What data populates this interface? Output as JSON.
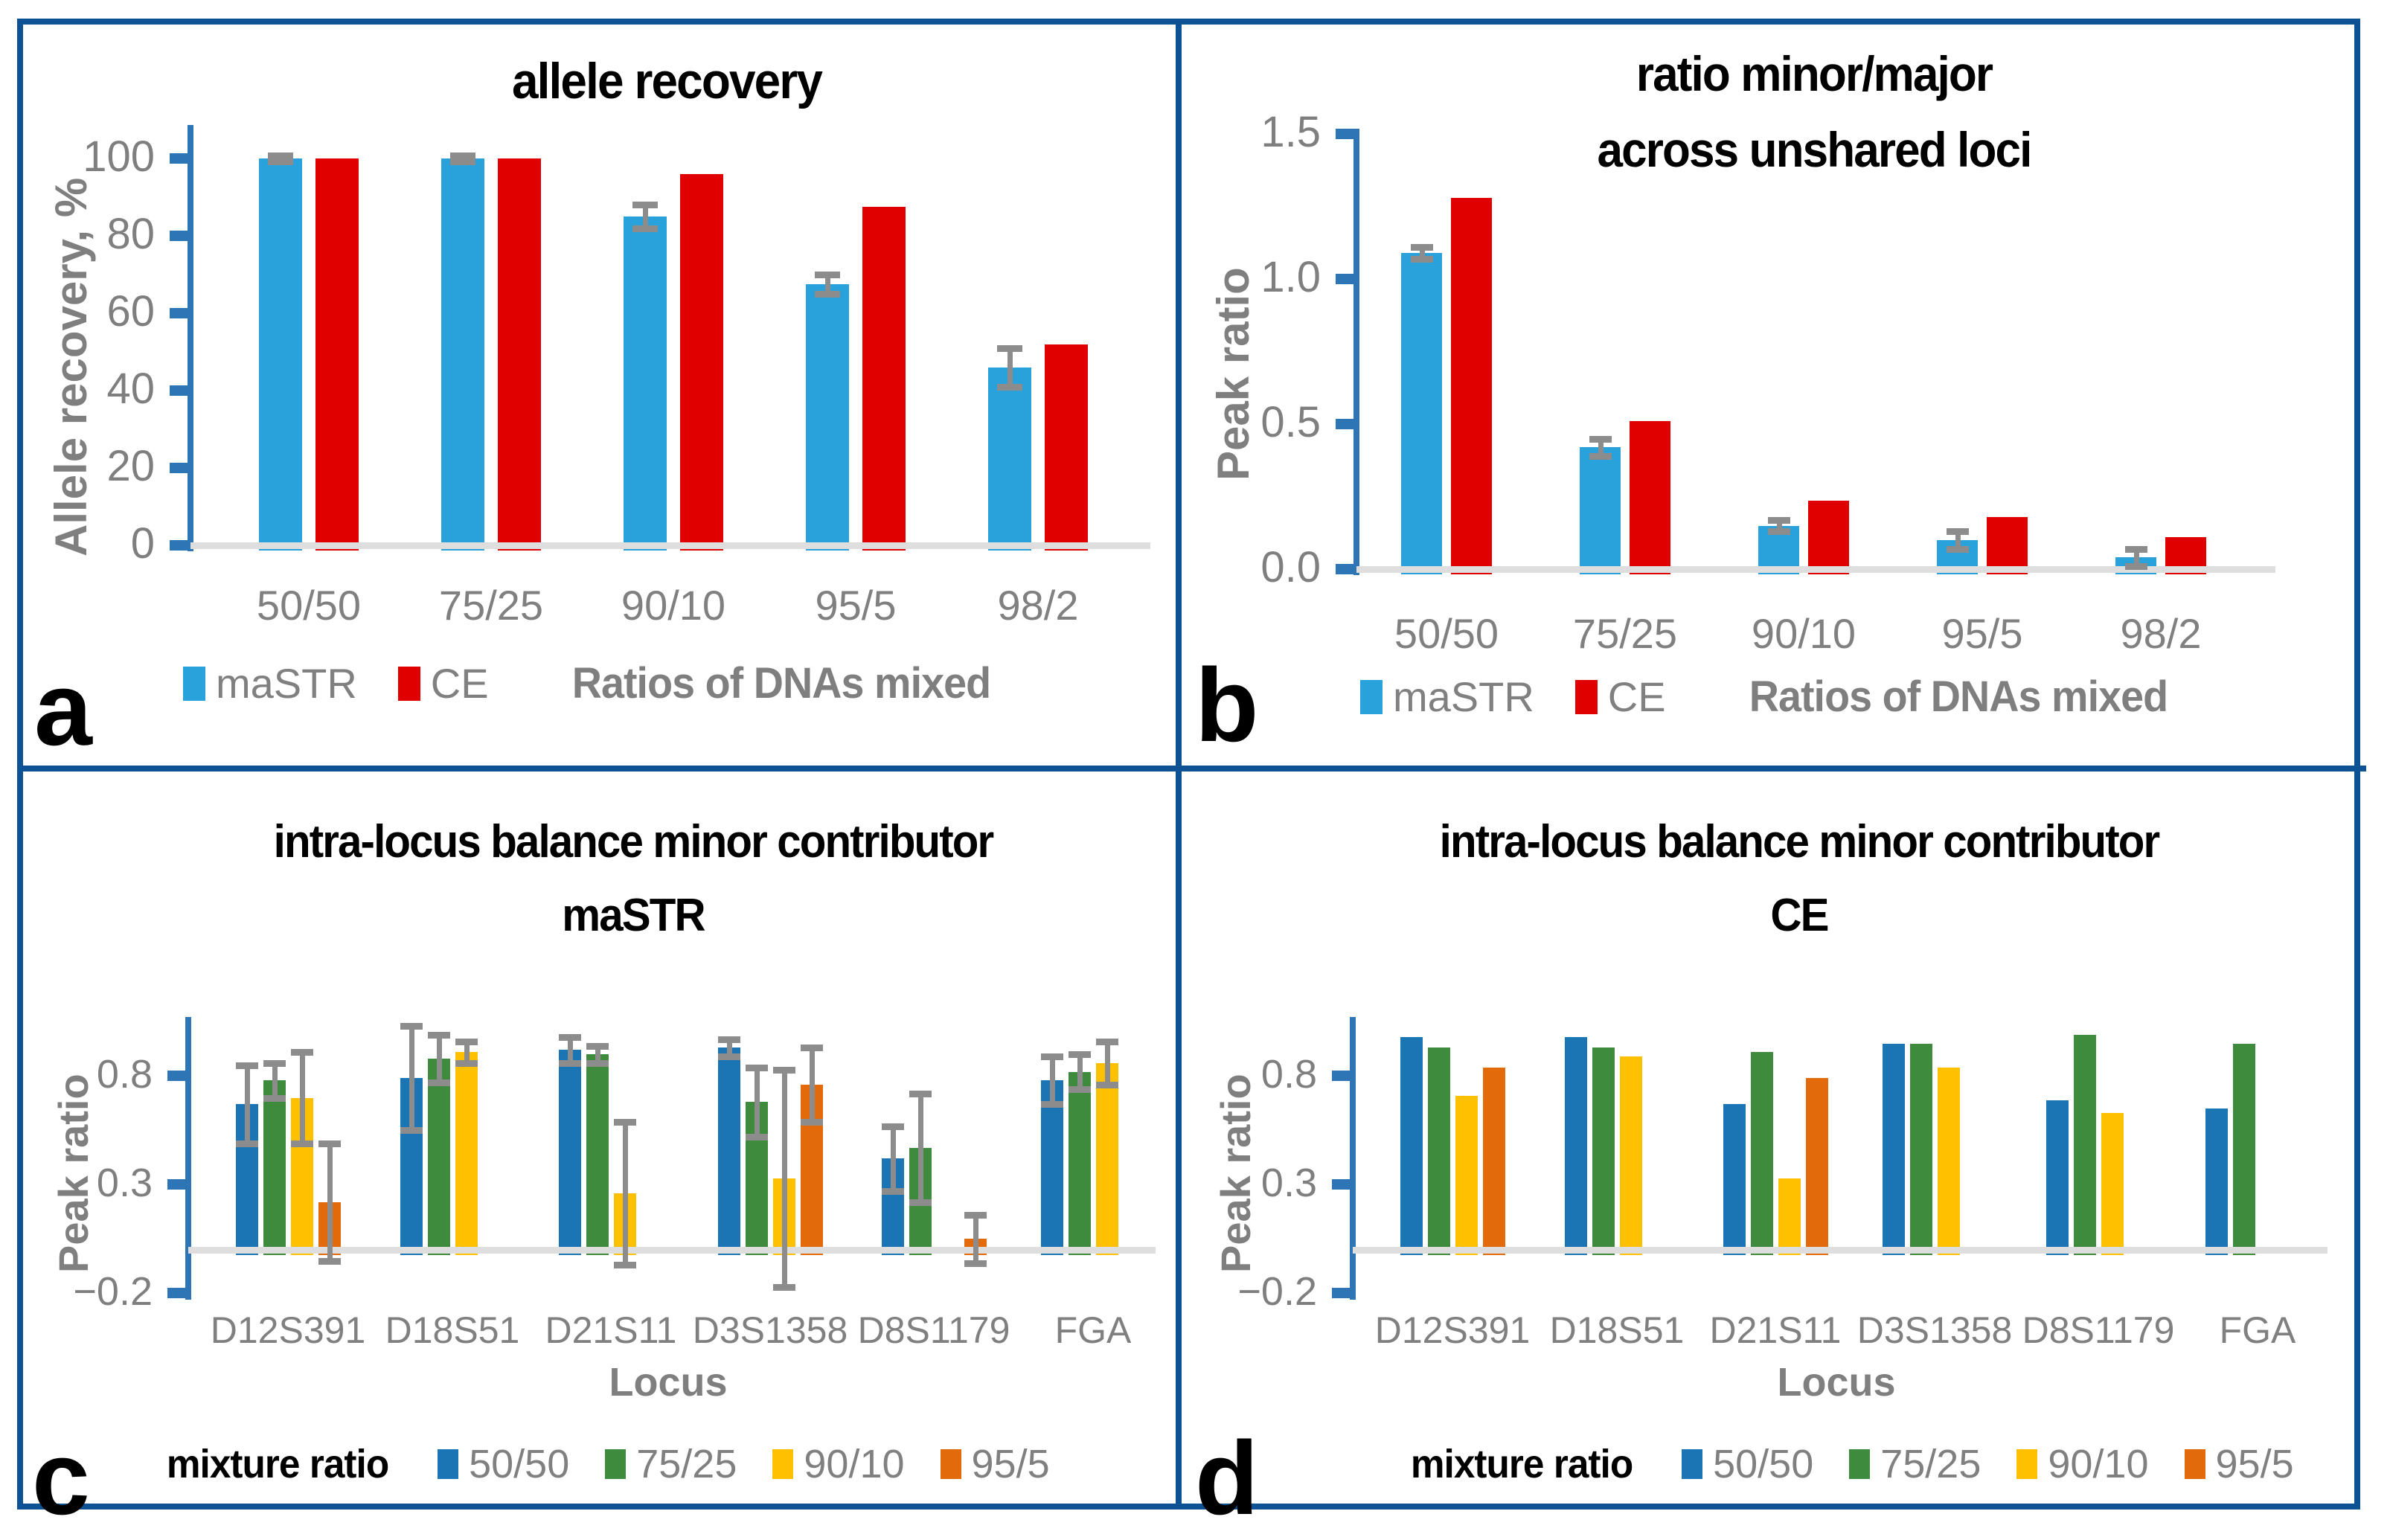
{
  "figure": {
    "background": "#FFFFFF",
    "frame_color": "#0D5295",
    "axis_color": "#2E75B6",
    "baseline_color": "#DEDEDE",
    "error_bar_color": "#8C8C8C",
    "text_gray": "#7F7F7F"
  },
  "chart_data": [
    {
      "panel_letter": "a",
      "type": "bar",
      "title_lines": [
        "allele recovery"
      ],
      "ylabel": "Allele recovery, %",
      "xlabel": "Ratios of DNAs mixed",
      "xlabel_position": "legend-row",
      "legend_title": null,
      "legend_position": "bottom",
      "grid": false,
      "categories": [
        "50/50",
        "75/25",
        "90/10",
        "95/5",
        "98/2"
      ],
      "series": [
        {
          "name": "maSTR",
          "color": "#29A2DB",
          "values": [
            100,
            100,
            85,
            67.5,
            46
          ],
          "errors": [
            0.8,
            0.8,
            3,
            2.5,
            5
          ]
        },
        {
          "name": "CE",
          "color": "#E00000",
          "values": [
            100,
            100,
            96,
            87.5,
            52
          ],
          "errors": null
        }
      ],
      "yticks": [
        {
          "v": 0,
          "label": "0"
        },
        {
          "v": 20,
          "label": "20"
        },
        {
          "v": 40,
          "label": "40"
        },
        {
          "v": 60,
          "label": "60"
        },
        {
          "v": 80,
          "label": "80"
        },
        {
          "v": 100,
          "label": "100"
        }
      ],
      "ylim": [
        0,
        110
      ]
    },
    {
      "panel_letter": "b",
      "type": "bar",
      "title_lines": [
        "ratio minor/major",
        "across unshared loci"
      ],
      "ylabel": "Peak ratio",
      "xlabel": "Ratios of DNAs mixed",
      "xlabel_position": "legend-row",
      "legend_title": null,
      "legend_position": "bottom",
      "grid": false,
      "categories": [
        "50/50",
        "75/25",
        "90/10",
        "95/5",
        "98/2"
      ],
      "series": [
        {
          "name": "maSTR",
          "color": "#29A2DB",
          "values": [
            1.09,
            0.42,
            0.15,
            0.1,
            0.04
          ],
          "errors": [
            0.02,
            0.03,
            0.02,
            0.03,
            0.03
          ]
        },
        {
          "name": "CE",
          "color": "#E00000",
          "values": [
            1.28,
            0.51,
            0.235,
            0.18,
            0.11
          ],
          "errors": null
        }
      ],
      "yticks": [
        {
          "v": 0,
          "label": "0.0"
        },
        {
          "v": 0.5,
          "label": "0.5"
        },
        {
          "v": 1.0,
          "label": "1.0"
        },
        {
          "v": 1.5,
          "label": "1.5"
        }
      ],
      "ylim": [
        0,
        1.55
      ]
    },
    {
      "panel_letter": "c",
      "type": "bar",
      "title_lines": [
        "intra-locus balance minor contributor",
        "maSTR"
      ],
      "ylabel": "Peak ratio",
      "xlabel": "Locus",
      "xlabel_position": "below",
      "legend_title": "mixture ratio",
      "legend_position": "bottom",
      "grid": false,
      "categories": [
        "D12S391",
        "D18S51",
        "D21S11",
        "D3S1358",
        "D8S1179",
        "FGA"
      ],
      "series": [
        {
          "name": "50/50",
          "color": "#1B74B4",
          "values": [
            0.67,
            0.79,
            0.92,
            0.93,
            0.42,
            0.78
          ],
          "errors": [
            0.18,
            0.24,
            0.06,
            0.04,
            0.15,
            0.11
          ]
        },
        {
          "name": "75/25",
          "color": "#3E8B3D",
          "values": [
            0.78,
            0.88,
            0.9,
            0.68,
            0.47,
            0.82
          ],
          "errors": [
            0.08,
            0.11,
            0.04,
            0.16,
            0.25,
            0.08
          ]
        },
        {
          "name": "90/10",
          "color": "#FFC000",
          "values": [
            0.7,
            0.91,
            0.26,
            0.33,
            null,
            0.86
          ],
          "errors": [
            0.21,
            0.05,
            0.33,
            0.5,
            null,
            0.1
          ]
        },
        {
          "name": "95/5",
          "color": "#E36A0B",
          "values": [
            0.22,
            null,
            null,
            0.76,
            0.05,
            null
          ],
          "errors": [
            0.27,
            null,
            null,
            0.17,
            0.11,
            null
          ]
        }
      ],
      "yticks": [
        {
          "v": -0.2,
          "label": "−0.2"
        },
        {
          "v": 0.3,
          "label": "0.3"
        },
        {
          "v": 0.8,
          "label": "0.8"
        }
      ],
      "ylim": [
        -0.2,
        1.08
      ]
    },
    {
      "panel_letter": "d",
      "type": "bar",
      "title_lines": [
        "intra-locus balance minor contributor",
        "CE"
      ],
      "ylabel": "Peak ratio",
      "xlabel": "Locus",
      "xlabel_position": "below",
      "legend_title": "mixture ratio",
      "legend_position": "bottom",
      "grid": false,
      "categories": [
        "D12S391",
        "D18S51",
        "D21S11",
        "D3S1358",
        "D8S1179",
        "FGA"
      ],
      "series": [
        {
          "name": "50/50",
          "color": "#1B74B4",
          "values": [
            0.98,
            0.98,
            0.67,
            0.95,
            0.69,
            0.65
          ],
          "errors": null
        },
        {
          "name": "75/25",
          "color": "#3E8B3D",
          "values": [
            0.93,
            0.93,
            0.91,
            0.95,
            0.99,
            0.95
          ],
          "errors": null
        },
        {
          "name": "90/10",
          "color": "#FFC000",
          "values": [
            0.71,
            0.89,
            0.33,
            0.84,
            0.63,
            null
          ],
          "errors": null
        },
        {
          "name": "95/5",
          "color": "#E36A0B",
          "values": [
            0.84,
            null,
            0.79,
            null,
            null,
            null
          ],
          "errors": null
        }
      ],
      "yticks": [
        {
          "v": -0.2,
          "label": "−0.2"
        },
        {
          "v": 0.3,
          "label": "0.3"
        },
        {
          "v": 0.8,
          "label": "0.8"
        }
      ],
      "ylim": [
        -0.2,
        1.08
      ]
    }
  ]
}
